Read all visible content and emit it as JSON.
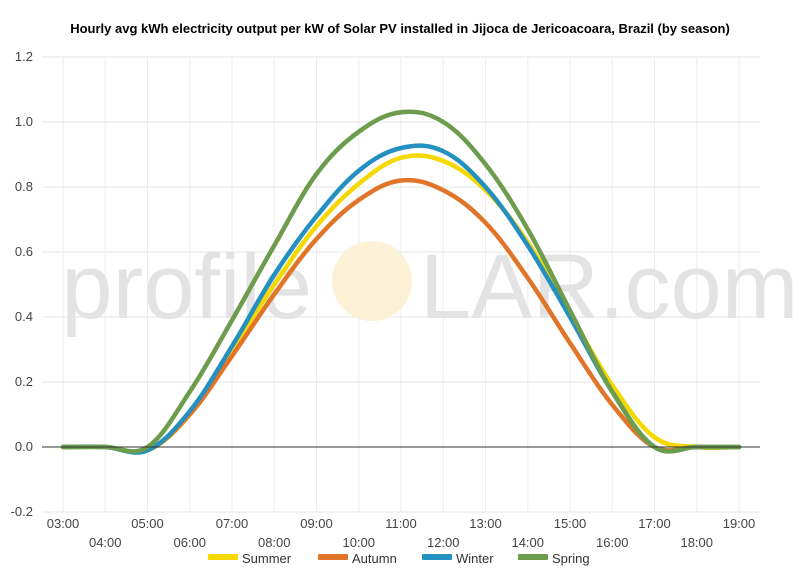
{
  "chart_data": {
    "type": "line",
    "title": "Hourly avg kWh electricity output per kW of Solar PV installed in Jijoca de Jericoacoara, Brazil (by season)",
    "xlabel": "",
    "ylabel": "",
    "ylim": [
      -0.2,
      1.2
    ],
    "yticks": [
      "1.2",
      "1.0",
      "0.8",
      "0.6",
      "0.4",
      "0.2",
      "0.0",
      "-0.2"
    ],
    "x": [
      "03:00",
      "04:00",
      "05:00",
      "06:00",
      "07:00",
      "08:00",
      "09:00",
      "10:00",
      "11:00",
      "12:00",
      "13:00",
      "14:00",
      "15:00",
      "16:00",
      "17:00",
      "18:00",
      "19:00"
    ],
    "grid": true,
    "legend_position": "bottom",
    "series": [
      {
        "name": "Summer",
        "color": "#f5d800",
        "values": [
          0.0,
          0.0,
          -0.01,
          0.1,
          0.3,
          0.5,
          0.68,
          0.81,
          0.89,
          0.88,
          0.79,
          0.63,
          0.41,
          0.19,
          0.03,
          0.0,
          0.0
        ]
      },
      {
        "name": "Autumn",
        "color": "#e07428",
        "values": [
          0.0,
          0.0,
          -0.01,
          0.1,
          0.28,
          0.47,
          0.64,
          0.76,
          0.82,
          0.79,
          0.69,
          0.52,
          0.32,
          0.13,
          0.0,
          0.0,
          0.0
        ]
      },
      {
        "name": "Winter",
        "color": "#2490c0",
        "values": [
          0.0,
          0.0,
          -0.01,
          0.11,
          0.31,
          0.53,
          0.71,
          0.85,
          0.92,
          0.91,
          0.8,
          0.62,
          0.4,
          0.17,
          0.0,
          0.0,
          0.0
        ]
      },
      {
        "name": "Spring",
        "color": "#6c9c4c",
        "values": [
          0.0,
          0.0,
          0.0,
          0.17,
          0.39,
          0.62,
          0.84,
          0.97,
          1.03,
          1.0,
          0.87,
          0.67,
          0.42,
          0.17,
          0.0,
          0.0,
          0.0
        ]
      }
    ]
  },
  "watermark": {
    "left": "profile",
    "right": "LAR.com"
  }
}
